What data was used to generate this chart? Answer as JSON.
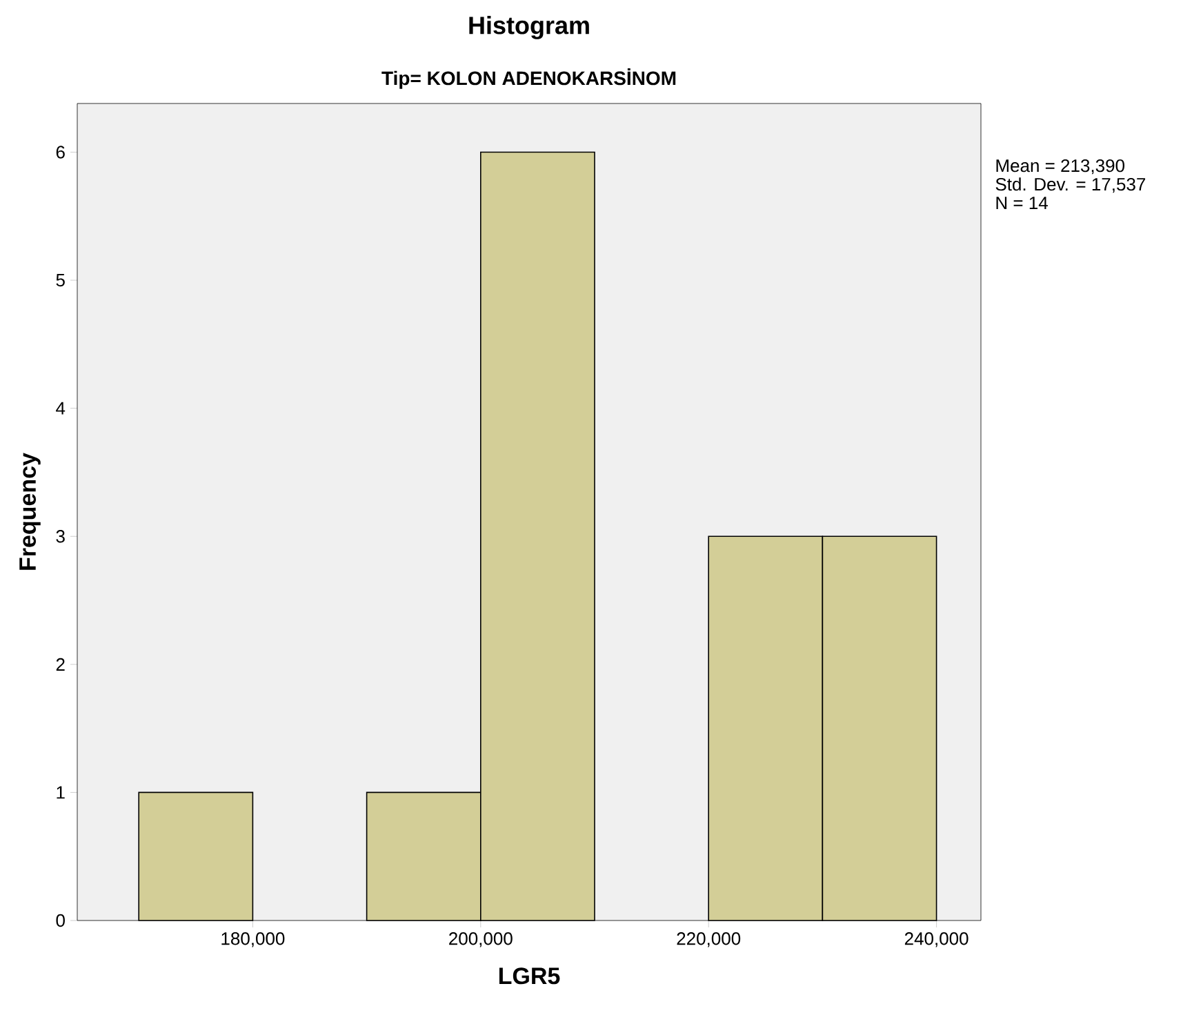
{
  "chart_data": {
    "type": "histogram",
    "title": "Histogram",
    "subtitle": "Tip= KOLON ADENOKARSİNOM",
    "xlabel": "LGR5",
    "ylabel": "Frequency",
    "bins": [
      170000,
      180000,
      190000,
      200000,
      210000,
      220000,
      230000,
      240000
    ],
    "values": [
      1,
      0,
      1,
      6,
      0,
      3,
      3
    ],
    "color": "#d3ce97",
    "xlim": [
      164600,
      243900
    ],
    "ylim": [
      0,
      6.38
    ],
    "xticks": [
      {
        "value": 180000,
        "label": "180,000"
      },
      {
        "value": 200000,
        "label": "200,000"
      },
      {
        "value": 220000,
        "label": "220,000"
      },
      {
        "value": 240000,
        "label": "240,000"
      }
    ],
    "yticks": [
      0,
      1,
      2,
      3,
      4,
      5,
      6
    ],
    "annotations": [
      "Mean = 213,390",
      "Std. Dev. = 17,537",
      "N = 14"
    ]
  }
}
